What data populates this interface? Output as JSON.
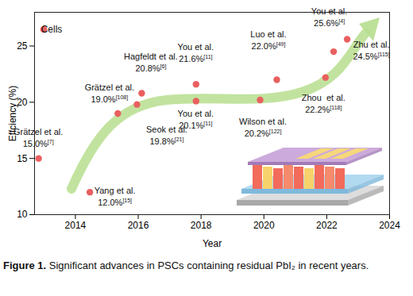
{
  "chart_data": {
    "type": "scatter",
    "x_label": "Year",
    "y_label": "Effciency (%)",
    "xlim": [
      2012.7,
      2024
    ],
    "ylim": [
      10,
      28
    ],
    "xticks": [
      2014,
      2016,
      2018,
      2020,
      2022,
      2024
    ],
    "yticks": [
      10,
      15,
      20,
      25
    ],
    "grid": false,
    "legend": "top-left",
    "data_labels": true,
    "series": [
      {
        "name": "Cells",
        "color": "#e8605f",
        "marker": "circle",
        "x": [
          2012.83,
          2014.46,
          2015.35,
          2015.96,
          2016.11,
          2017.84,
          2017.84,
          2019.88,
          2020.41,
          2021.96,
          2022.22,
          2022.65
        ],
        "values": [
          15.0,
          12.0,
          19.0,
          19.8,
          20.8,
          21.6,
          20.1,
          20.2,
          22.0,
          22.2,
          24.5,
          25.6
        ],
        "value_labels": [
          "15.0%",
          "12.0%",
          "19.0%",
          "19.8%",
          "20.8%",
          "21.6%",
          "20.1%",
          "20.2%",
          "22.0%",
          "22.2%",
          "24.5%",
          "25.6%"
        ],
        "authors": [
          "Grätzel et al.",
          "Yang et al.",
          "Grätzel et al.",
          "Seok et al.",
          "Hagfeldt et al.",
          "You et al.",
          "You et al.",
          "Wilson et al.",
          "Luo et al.",
          "Zhou  et al.",
          "Zhu et al.",
          "You et al."
        ],
        "refs": [
          "[7]",
          "[15]",
          "[108]",
          "[21]",
          "[6]",
          "[11]",
          "[11]",
          "[122]",
          "[49]",
          "[118]",
          "[115]",
          "[4]"
        ]
      }
    ],
    "caption": {
      "label": "Figure 1.",
      "text": "Significant advances in PSCs containing residual PbI₂ in recent years."
    }
  }
}
